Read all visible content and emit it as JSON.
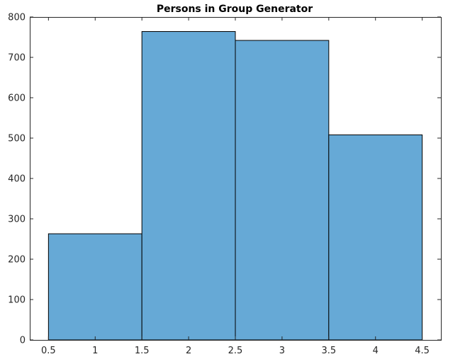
{
  "chart_data": {
    "type": "bar",
    "title": "Persons in Group Generator",
    "xlabel": "",
    "ylabel": "",
    "bins": [
      {
        "x0": 0.5,
        "x1": 1.5,
        "value": 263
      },
      {
        "x0": 1.5,
        "x1": 2.5,
        "value": 764
      },
      {
        "x0": 2.5,
        "x1": 3.5,
        "value": 742
      },
      {
        "x0": 3.5,
        "x1": 4.5,
        "value": 508
      }
    ],
    "xlim": [
      0.3,
      4.7
    ],
    "ylim": [
      0,
      800
    ],
    "xticks": [
      0.5,
      1,
      1.5,
      2,
      2.5,
      3,
      3.5,
      4,
      4.5
    ],
    "xtick_labels": [
      "0.5",
      "1",
      "1.5",
      "2",
      "2.5",
      "3",
      "3.5",
      "4",
      "4.5"
    ],
    "yticks": [
      0,
      100,
      200,
      300,
      400,
      500,
      600,
      700,
      800
    ],
    "ytick_labels": [
      "0",
      "100",
      "200",
      "300",
      "400",
      "500",
      "600",
      "700",
      "800"
    ],
    "grid": false,
    "bar_color": "#66a9d6",
    "edge_color": "#000000"
  }
}
